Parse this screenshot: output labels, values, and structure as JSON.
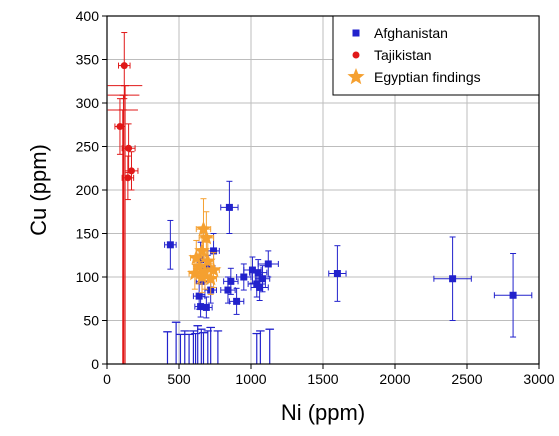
{
  "chart_data": {
    "type": "scatter",
    "title": "",
    "xlabel": "Ni (ppm)",
    "ylabel": "Cu (ppm)",
    "xlim": [
      0,
      3000
    ],
    "ylim": [
      0,
      400
    ],
    "xticks": [
      0,
      500,
      1000,
      1500,
      2000,
      2500,
      3000
    ],
    "yticks": [
      0,
      50,
      100,
      150,
      200,
      250,
      300,
      350,
      400
    ],
    "grid": true,
    "legend_position": "top-right",
    "series": [
      {
        "name": "Afghanistan",
        "marker": "square",
        "color": "#2222cc",
        "points": [
          {
            "x": 440,
            "y": 137,
            "xerr": 40,
            "yerr": 28
          },
          {
            "x": 850,
            "y": 180,
            "xerr": 60,
            "yerr": 30
          },
          {
            "x": 650,
            "y": 120,
            "xerr": 50,
            "yerr": 20
          },
          {
            "x": 700,
            "y": 110,
            "xerr": 50,
            "yerr": 15
          },
          {
            "x": 740,
            "y": 130,
            "xerr": 40,
            "yerr": 20
          },
          {
            "x": 660,
            "y": 95,
            "xerr": 40,
            "yerr": 15
          },
          {
            "x": 720,
            "y": 85,
            "xerr": 40,
            "yerr": 15
          },
          {
            "x": 640,
            "y": 78,
            "xerr": 40,
            "yerr": 15
          },
          {
            "x": 690,
            "y": 65,
            "xerr": 40,
            "yerr": 12
          },
          {
            "x": 650,
            "y": 66,
            "xerr": 40,
            "yerr": 12
          },
          {
            "x": 840,
            "y": 85,
            "xerr": 50,
            "yerr": 15
          },
          {
            "x": 860,
            "y": 95,
            "xerr": 50,
            "yerr": 15
          },
          {
            "x": 900,
            "y": 72,
            "xerr": 50,
            "yerr": 15
          },
          {
            "x": 950,
            "y": 100,
            "xerr": 50,
            "yerr": 15
          },
          {
            "x": 1010,
            "y": 108,
            "xerr": 60,
            "yerr": 15
          },
          {
            "x": 1050,
            "y": 105,
            "xerr": 60,
            "yerr": 15
          },
          {
            "x": 1040,
            "y": 92,
            "xerr": 60,
            "yerr": 15
          },
          {
            "x": 1060,
            "y": 88,
            "xerr": 60,
            "yerr": 15
          },
          {
            "x": 1080,
            "y": 98,
            "xerr": 50,
            "yerr": 15
          },
          {
            "x": 1120,
            "y": 115,
            "xerr": 70,
            "yerr": 15
          },
          {
            "x": 1600,
            "y": 104,
            "xerr": 60,
            "yerr": 32
          },
          {
            "x": 2400,
            "y": 98,
            "xerr": 130,
            "yerr": 48
          },
          {
            "x": 2820,
            "y": 79,
            "xerr": 130,
            "yerr": 48
          }
        ],
        "lower_bounds": [
          {
            "x": 420,
            "y": 37,
            "xerr": 30
          },
          {
            "x": 480,
            "y": 48,
            "xerr": 30
          },
          {
            "x": 510,
            "y": 34,
            "xerr": 30
          },
          {
            "x": 540,
            "y": 38,
            "xerr": 30
          },
          {
            "x": 570,
            "y": 34,
            "xerr": 30
          },
          {
            "x": 600,
            "y": 38,
            "xerr": 30
          },
          {
            "x": 615,
            "y": 35,
            "xerr": 30
          },
          {
            "x": 630,
            "y": 44,
            "xerr": 30
          },
          {
            "x": 655,
            "y": 40,
            "xerr": 30
          },
          {
            "x": 670,
            "y": 36,
            "xerr": 30
          },
          {
            "x": 700,
            "y": 38,
            "xerr": 30
          },
          {
            "x": 720,
            "y": 42,
            "xerr": 30
          },
          {
            "x": 770,
            "y": 38,
            "xerr": 30
          },
          {
            "x": 1040,
            "y": 35,
            "xerr": 30
          },
          {
            "x": 1065,
            "y": 38,
            "xerr": 30
          },
          {
            "x": 1130,
            "y": 40,
            "xerr": 30
          }
        ]
      },
      {
        "name": "Tajikistan",
        "marker": "circle",
        "color": "#e01818",
        "points": [
          {
            "x": 120,
            "y": 343,
            "xerr": 40,
            "yerr": 38
          },
          {
            "x": 90,
            "y": 273,
            "xerr": 35,
            "yerr": 32
          },
          {
            "x": 150,
            "y": 248,
            "xerr": 45,
            "yerr": 28
          },
          {
            "x": 170,
            "y": 222,
            "xerr": 45,
            "yerr": 22
          },
          {
            "x": 145,
            "y": 214,
            "xerr": 40,
            "yerr": 25
          }
        ],
        "lower_bounds": [
          {
            "x": 125,
            "y": 320,
            "xerr": 120
          },
          {
            "x": 115,
            "y": 309,
            "xerr": 110
          },
          {
            "x": 110,
            "y": 292,
            "xerr": 105
          }
        ]
      },
      {
        "name": "Egyptian findings",
        "marker": "star",
        "color": "#f5a030",
        "points": [
          {
            "x": 670,
            "y": 155,
            "xerr": 50,
            "yerr": 35
          },
          {
            "x": 690,
            "y": 145,
            "xerr": 50,
            "yerr": 30
          },
          {
            "x": 660,
            "y": 130,
            "xerr": 40,
            "yerr": 25
          },
          {
            "x": 620,
            "y": 122,
            "xerr": 40,
            "yerr": 20
          },
          {
            "x": 700,
            "y": 118,
            "xerr": 40,
            "yerr": 22
          },
          {
            "x": 640,
            "y": 112,
            "xerr": 40,
            "yerr": 20
          },
          {
            "x": 680,
            "y": 106,
            "xerr": 40,
            "yerr": 20
          },
          {
            "x": 610,
            "y": 104,
            "xerr": 40,
            "yerr": 18
          },
          {
            "x": 740,
            "y": 108,
            "xerr": 40,
            "yerr": 20
          },
          {
            "x": 660,
            "y": 100,
            "xerr": 40,
            "yerr": 18
          },
          {
            "x": 720,
            "y": 98,
            "xerr": 40,
            "yerr": 18
          }
        ]
      }
    ]
  }
}
